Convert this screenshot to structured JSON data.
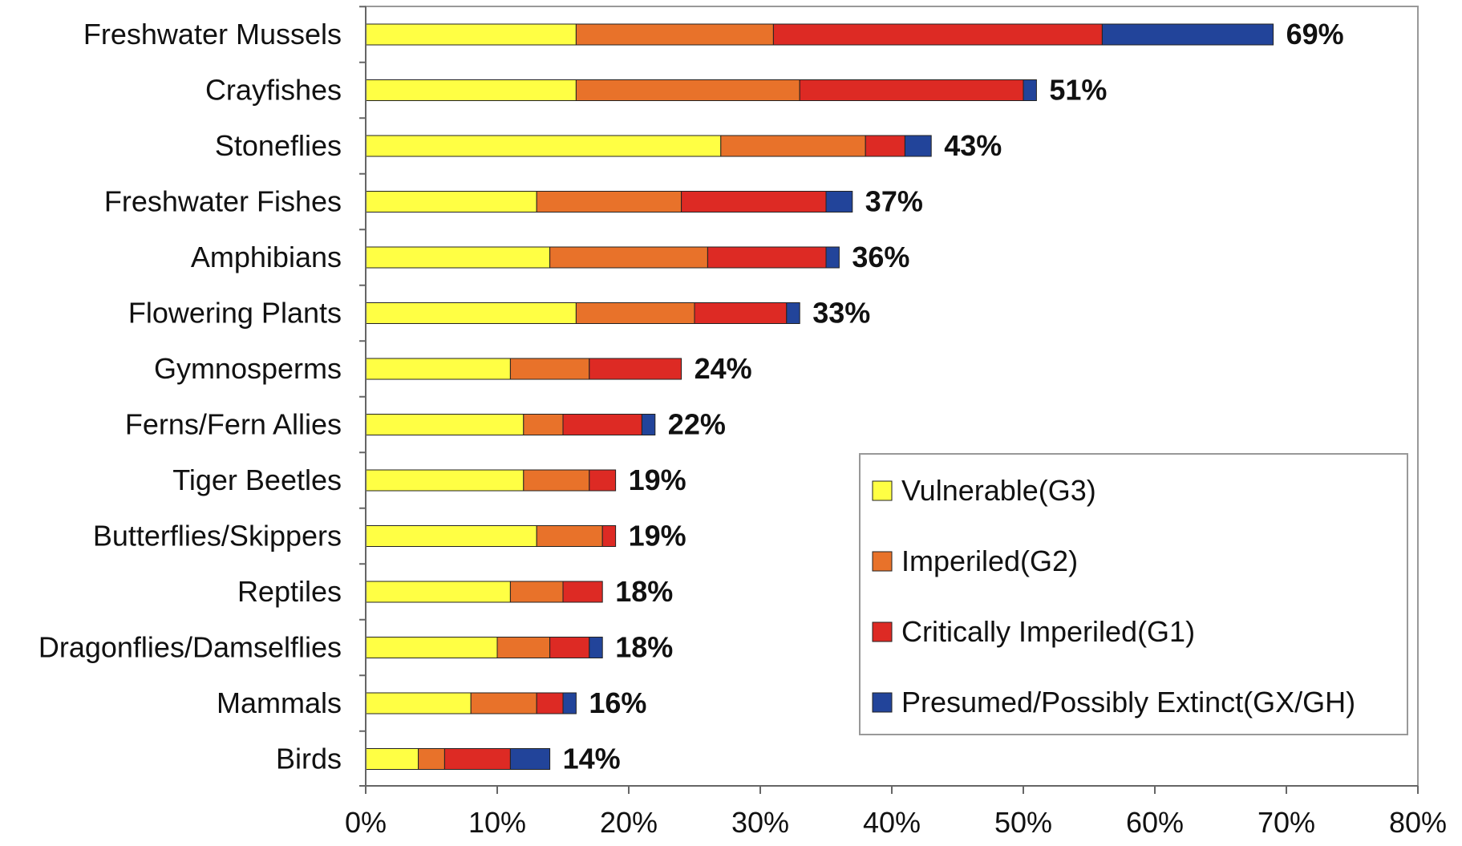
{
  "chart_data": {
    "type": "bar",
    "orientation": "horizontal",
    "stacked": true,
    "categories": [
      "Freshwater Mussels",
      "Crayfishes",
      "Stoneflies",
      "Freshwater Fishes",
      "Amphibians",
      "Flowering Plants",
      "Gymnosperms",
      "Ferns/Fern Allies",
      "Tiger Beetles",
      "Butterflies/Skippers",
      "Reptiles",
      "Dragonflies/Damselflies",
      "Mammals",
      "Birds"
    ],
    "series": [
      {
        "name": "Vulnerable(G3)",
        "color": "#ffff44",
        "values": [
          16,
          16,
          27,
          13,
          14,
          16,
          11,
          12,
          12,
          13,
          11,
          10,
          8,
          4
        ]
      },
      {
        "name": "Imperiled(G2)",
        "color": "#e8722a",
        "values": [
          15,
          17,
          11,
          11,
          12,
          9,
          6,
          3,
          5,
          5,
          4,
          4,
          5,
          2
        ]
      },
      {
        "name": "Critically Imperiled(G1)",
        "color": "#dd2a24",
        "values": [
          25,
          17,
          3,
          11,
          9,
          7,
          7,
          6,
          2,
          1,
          3,
          3,
          2,
          5
        ]
      },
      {
        "name": "Presumed/Possibly Extinct(GX/GH)",
        "color": "#22449a",
        "values": [
          13,
          1,
          2,
          2,
          1,
          1,
          0,
          1,
          0,
          0,
          0,
          1,
          1,
          3
        ]
      }
    ],
    "totals": [
      "69%",
      "51%",
      "43%",
      "37%",
      "36%",
      "33%",
      "24%",
      "22%",
      "19%",
      "19%",
      "18%",
      "18%",
      "16%",
      "14%"
    ],
    "xlim": [
      0,
      80
    ],
    "x_ticks": [
      "0%",
      "10%",
      "20%",
      "30%",
      "40%",
      "50%",
      "60%",
      "70%",
      "80%"
    ],
    "grid": false,
    "legend_position": "bottom-right",
    "title": "",
    "xlabel": "",
    "ylabel": ""
  }
}
